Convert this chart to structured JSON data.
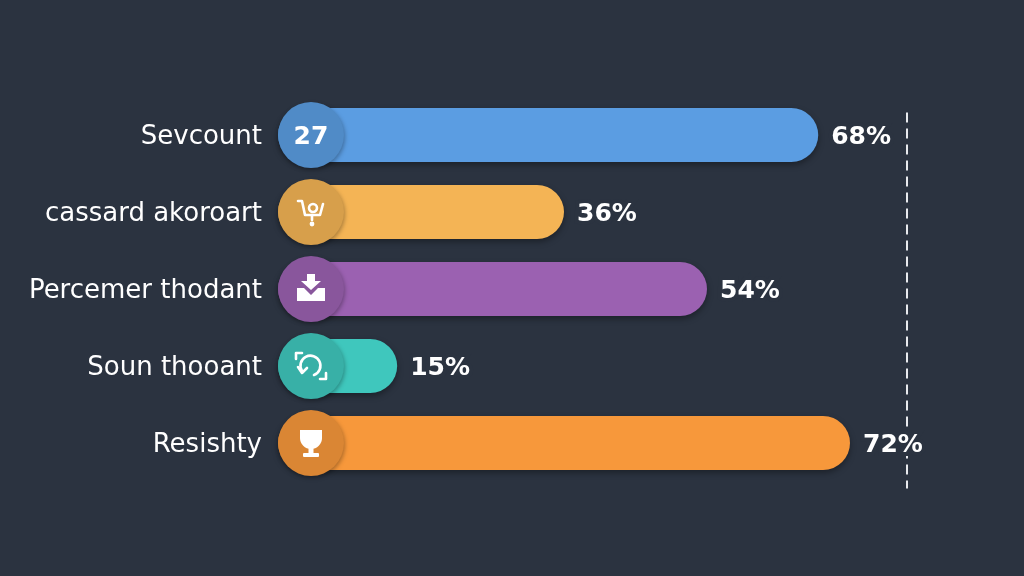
{
  "chart_data": {
    "type": "bar",
    "orientation": "horizontal",
    "categories": [
      "Sevcount",
      "cassard akoroart",
      "Percemer thodant",
      "Soun thooant",
      "Resishty"
    ],
    "values": [
      68,
      36,
      54,
      15,
      72
    ],
    "colors": [
      "#5b9de2",
      "#f4b455",
      "#9b61b1",
      "#3fc7bd",
      "#f7983b"
    ],
    "value_labels": [
      "68%",
      "36%",
      "54%",
      "15%",
      "72%"
    ],
    "ref_lines": [
      {
        "axis": "x",
        "color": "#e8eaee",
        "line_style": "dashed"
      }
    ],
    "annotations": [
      "27"
    ]
  }
}
